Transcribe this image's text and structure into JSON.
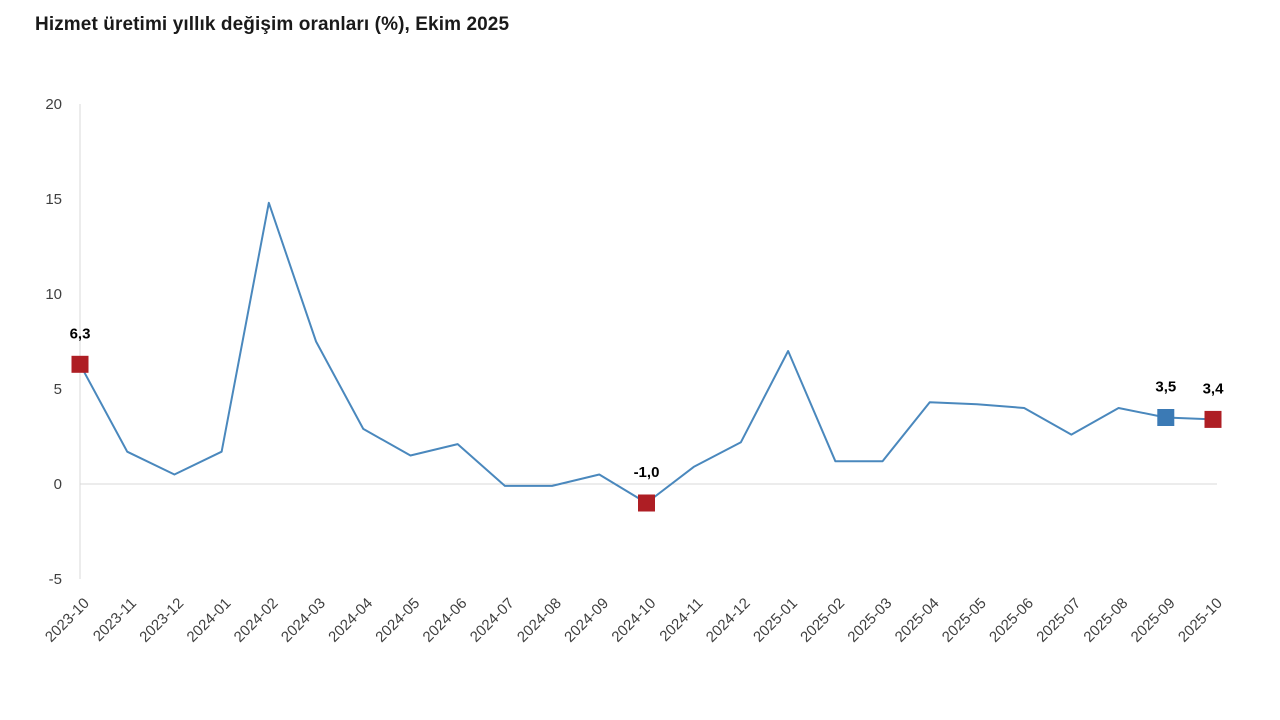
{
  "title": "Hizmet üretimi yıllık değişim oranları (%), Ekim 2025",
  "chart_data": {
    "type": "line",
    "title": "Hizmet üretimi yıllık değişim oranları (%), Ekim 2025",
    "categories": [
      "2023-10",
      "2023-11",
      "2023-12",
      "2024-01",
      "2024-02",
      "2024-03",
      "2024-04",
      "2024-05",
      "2024-06",
      "2024-07",
      "2024-08",
      "2024-09",
      "2024-10",
      "2024-11",
      "2024-12",
      "2025-01",
      "2025-02",
      "2025-03",
      "2025-04",
      "2025-05",
      "2025-06",
      "2025-07",
      "2025-08",
      "2025-09",
      "2025-10"
    ],
    "series": [
      {
        "name": "Hizmet üretimi yıllık değişim oranı (%)",
        "values": [
          6.3,
          1.7,
          0.5,
          1.7,
          14.8,
          7.5,
          2.9,
          1.5,
          2.1,
          -0.1,
          -0.1,
          0.5,
          -1.0,
          0.9,
          2.2,
          7.0,
          1.2,
          1.2,
          4.3,
          4.2,
          4.0,
          2.6,
          4.0,
          3.5,
          3.4
        ]
      }
    ],
    "xlabel": "",
    "ylabel": "",
    "ylim": [
      -5,
      20
    ],
    "yticks": [
      20,
      15,
      10,
      5,
      0,
      -5
    ],
    "grid": "horizontal zero line only",
    "legend_position": "none",
    "annotated_points": [
      {
        "category": "2023-10",
        "value": 6.3,
        "label": "6,3",
        "marker": "red-square"
      },
      {
        "category": "2024-10",
        "value": -1.0,
        "label": "-1,0",
        "marker": "red-square"
      },
      {
        "category": "2025-09",
        "value": 3.5,
        "label": "3,5",
        "marker": "blue-square"
      },
      {
        "category": "2025-10",
        "value": 3.4,
        "label": "3,4",
        "marker": "red-square"
      }
    ],
    "colors": {
      "line": "#4a88bd",
      "red_square": "#ae1e24",
      "blue_square": "#3b7ab5",
      "axis_line": "#d9d9d9",
      "tick_text": "#3f3f3f",
      "title_text": "#1a1a1a"
    }
  }
}
